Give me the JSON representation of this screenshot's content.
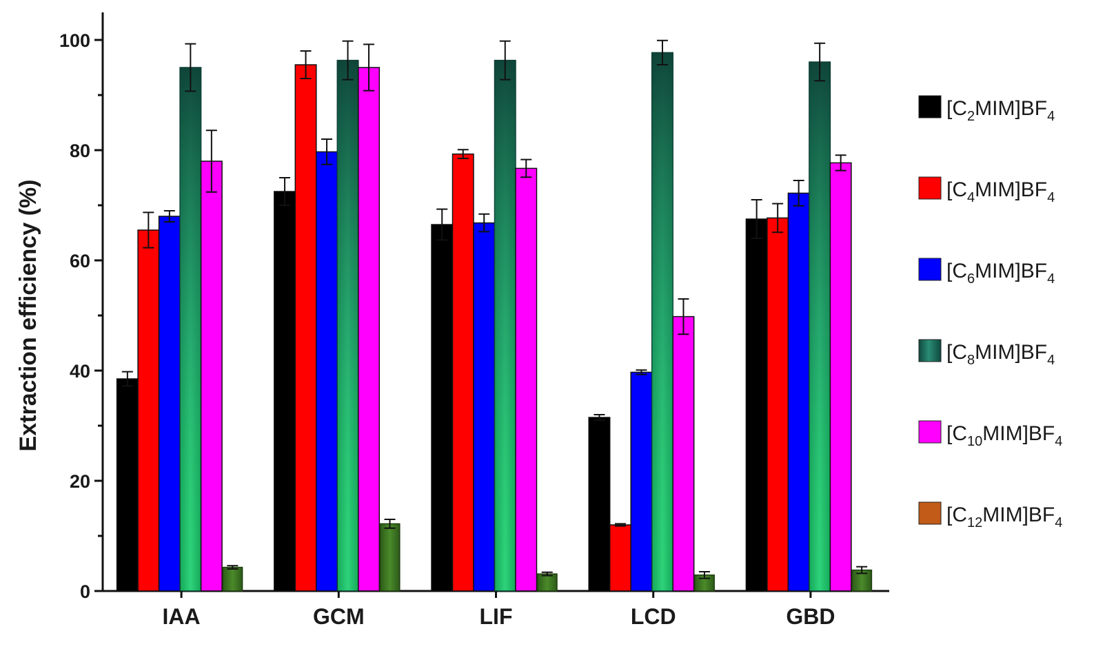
{
  "chart_data": {
    "type": "bar",
    "title": "",
    "xlabel": "",
    "ylabel": "Extraction efficiency (%)",
    "ylim": [
      0,
      100
    ],
    "yticks": [
      0,
      20,
      40,
      60,
      80,
      100
    ],
    "grid": false,
    "legend_position": "right",
    "categories": [
      "IAA",
      "GCM",
      "LIF",
      "LCD",
      "GBD"
    ],
    "series": [
      {
        "name": "[C2MIM]BF4",
        "base": "[C",
        "sub": "2",
        "mid": "MIM]BF",
        "sub2": "4",
        "color": "#000000",
        "values": [
          38.5,
          72.5,
          66.5,
          31.5,
          67.5
        ],
        "errors": [
          1.3,
          2.5,
          2.8,
          0.5,
          3.5
        ]
      },
      {
        "name": "[C4MIM]BF4",
        "base": "[C",
        "sub": "4",
        "mid": "MIM]BF",
        "sub2": "4",
        "color": "#ff0000",
        "values": [
          65.5,
          95.5,
          79.3,
          12.0,
          67.7
        ],
        "errors": [
          3.2,
          2.5,
          0.8,
          0.2,
          2.6
        ]
      },
      {
        "name": "[C6MIM]BF4",
        "base": "[C",
        "sub": "6",
        "mid": "MIM]BF",
        "sub2": "4",
        "color": "#0000ff",
        "values": [
          68.0,
          79.7,
          66.8,
          39.7,
          72.2
        ],
        "errors": [
          1.0,
          2.3,
          1.6,
          0.4,
          2.3
        ]
      },
      {
        "name": "[C8MIM]BF4",
        "base": "[C",
        "sub": "8",
        "mid": "MIM]BF",
        "sub2": "4",
        "color": "#1d6b5f",
        "values": [
          95.0,
          96.3,
          96.3,
          97.7,
          96.0
        ],
        "errors": [
          4.3,
          3.5,
          3.5,
          2.2,
          3.4
        ]
      },
      {
        "name": "[C10MIM]BF4",
        "base": "[C",
        "sub": "10",
        "mid": "MIM]BF",
        "sub2": "4",
        "color": "#ff00ff",
        "values": [
          78.0,
          95.0,
          76.7,
          49.8,
          77.7
        ],
        "errors": [
          5.6,
          4.2,
          1.6,
          3.2,
          1.4
        ]
      },
      {
        "name": "[C12MIM]BF4",
        "base": "[C",
        "sub": "12",
        "mid": "MIM]BF",
        "sub2": "4",
        "color": "#c25a18",
        "values": [
          4.3,
          12.2,
          3.1,
          2.9,
          3.8
        ],
        "errors": [
          0.3,
          0.8,
          0.3,
          0.6,
          0.6
        ]
      }
    ]
  }
}
